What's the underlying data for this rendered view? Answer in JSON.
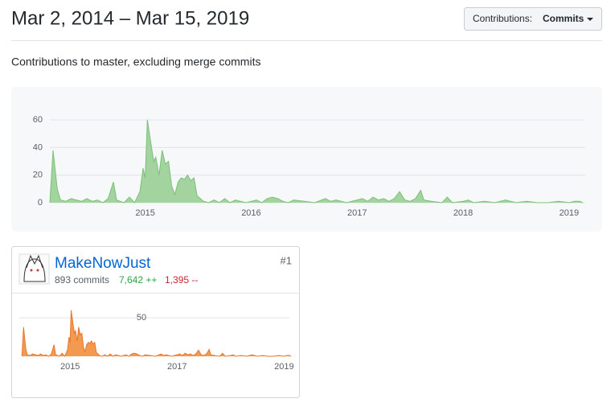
{
  "header": {
    "title": "Mar 2, 2014 – Mar 15, 2019",
    "dropdown_label": "Contributions:",
    "dropdown_value": "Commits"
  },
  "subtitle": "Contributions to master, excluding merge commits",
  "contributor": {
    "name": "MakeNowJust",
    "rank": "#1",
    "commits": "893 commits",
    "additions": "7,642 ++",
    "deletions": "1,395 --"
  },
  "chart_data": [
    {
      "type": "area",
      "color": "#a3d49f",
      "x": [
        2014.1,
        2014.13,
        2014.17,
        2014.2,
        2014.25,
        2014.3,
        2014.35,
        2014.4,
        2014.45,
        2014.5,
        2014.55,
        2014.6,
        2014.65,
        2014.7,
        2014.73,
        2014.8,
        2014.85,
        2014.9,
        2014.95,
        2014.98,
        2015.0,
        2015.02,
        2015.05,
        2015.08,
        2015.1,
        2015.13,
        2015.16,
        2015.19,
        2015.22,
        2015.25,
        2015.28,
        2015.31,
        2015.34,
        2015.37,
        2015.4,
        2015.43,
        2015.46,
        2015.49,
        2015.52,
        2015.55,
        2015.6,
        2015.65,
        2015.7,
        2015.75,
        2015.8,
        2015.85,
        2015.9,
        2015.95,
        2016.0,
        2016.05,
        2016.1,
        2016.15,
        2016.2,
        2016.25,
        2016.3,
        2016.35,
        2016.4,
        2016.5,
        2016.6,
        2016.7,
        2016.75,
        2016.8,
        2016.9,
        2017.0,
        2017.05,
        2017.1,
        2017.15,
        2017.2,
        2017.25,
        2017.3,
        2017.35,
        2017.4,
        2017.45,
        2017.5,
        2017.55,
        2017.6,
        2017.63,
        2017.7,
        2017.8,
        2017.85,
        2017.9,
        2018.0,
        2018.05,
        2018.1,
        2018.2,
        2018.3,
        2018.4,
        2018.5,
        2018.6,
        2018.7,
        2018.8,
        2018.9,
        2019.0,
        2019.05,
        2019.1,
        2019.13
      ],
      "values": [
        0,
        38,
        10,
        2,
        1,
        3,
        2,
        1,
        3,
        1,
        2,
        0,
        3,
        15,
        2,
        0,
        4,
        0,
        8,
        25,
        18,
        60,
        45,
        30,
        33,
        20,
        38,
        28,
        30,
        12,
        6,
        15,
        18,
        17,
        20,
        16,
        18,
        5,
        3,
        1,
        0,
        2,
        0,
        3,
        0,
        2,
        1,
        0,
        1,
        2,
        0,
        3,
        4,
        3,
        1,
        0,
        2,
        1,
        0,
        3,
        1,
        2,
        0,
        2,
        3,
        1,
        4,
        2,
        3,
        1,
        3,
        8,
        2,
        1,
        3,
        9,
        2,
        1,
        0,
        4,
        0,
        1,
        2,
        0,
        1,
        0,
        2,
        0,
        1,
        0,
        0,
        1,
        0,
        1,
        1,
        0
      ],
      "xlim": [
        2014.1,
        2019.13
      ],
      "xticks": [
        2015,
        2016,
        2017,
        2018,
        2019
      ],
      "ylim": [
        0,
        70
      ],
      "yticks": [
        0,
        20,
        40,
        60
      ],
      "grid": true
    },
    {
      "type": "area",
      "color": "#f29b50",
      "x": [
        2014.1,
        2014.13,
        2014.17,
        2014.2,
        2014.25,
        2014.3,
        2014.35,
        2014.4,
        2014.45,
        2014.5,
        2014.55,
        2014.6,
        2014.65,
        2014.7,
        2014.73,
        2014.8,
        2014.85,
        2014.9,
        2014.95,
        2014.98,
        2015.0,
        2015.02,
        2015.05,
        2015.08,
        2015.1,
        2015.13,
        2015.16,
        2015.19,
        2015.22,
        2015.25,
        2015.28,
        2015.31,
        2015.34,
        2015.37,
        2015.4,
        2015.43,
        2015.46,
        2015.49,
        2015.52,
        2015.55,
        2015.6,
        2015.65,
        2015.7,
        2015.75,
        2015.8,
        2015.85,
        2015.9,
        2015.95,
        2016.0,
        2016.05,
        2016.1,
        2016.15,
        2016.2,
        2016.25,
        2016.3,
        2016.35,
        2016.4,
        2016.5,
        2016.6,
        2016.7,
        2016.75,
        2016.8,
        2016.9,
        2017.0,
        2017.05,
        2017.1,
        2017.15,
        2017.2,
        2017.25,
        2017.3,
        2017.35,
        2017.4,
        2017.45,
        2017.5,
        2017.55,
        2017.6,
        2017.63,
        2017.7,
        2017.8,
        2017.85,
        2017.9,
        2018.0,
        2018.05,
        2018.1,
        2018.2,
        2018.3,
        2018.4,
        2018.5,
        2018.6,
        2018.7,
        2018.8,
        2018.9,
        2019.0,
        2019.05,
        2019.1,
        2019.13
      ],
      "values": [
        0,
        38,
        10,
        2,
        1,
        3,
        2,
        1,
        3,
        1,
        2,
        0,
        3,
        15,
        2,
        0,
        4,
        0,
        8,
        25,
        18,
        60,
        45,
        30,
        33,
        20,
        38,
        28,
        30,
        12,
        6,
        15,
        18,
        17,
        20,
        16,
        18,
        5,
        3,
        1,
        0,
        2,
        0,
        3,
        0,
        2,
        1,
        0,
        1,
        2,
        0,
        3,
        4,
        3,
        1,
        0,
        2,
        1,
        0,
        3,
        1,
        2,
        0,
        2,
        3,
        1,
        4,
        2,
        3,
        1,
        3,
        8,
        2,
        1,
        3,
        9,
        2,
        1,
        0,
        4,
        0,
        1,
        2,
        0,
        1,
        0,
        2,
        0,
        1,
        0,
        0,
        1,
        0,
        1,
        1,
        0
      ],
      "xlim": [
        2014.05,
        2019.1
      ],
      "xticks": [
        2015,
        2017,
        2019
      ],
      "ylim": [
        0,
        70
      ],
      "yticks": [
        50
      ],
      "grid": true
    }
  ]
}
